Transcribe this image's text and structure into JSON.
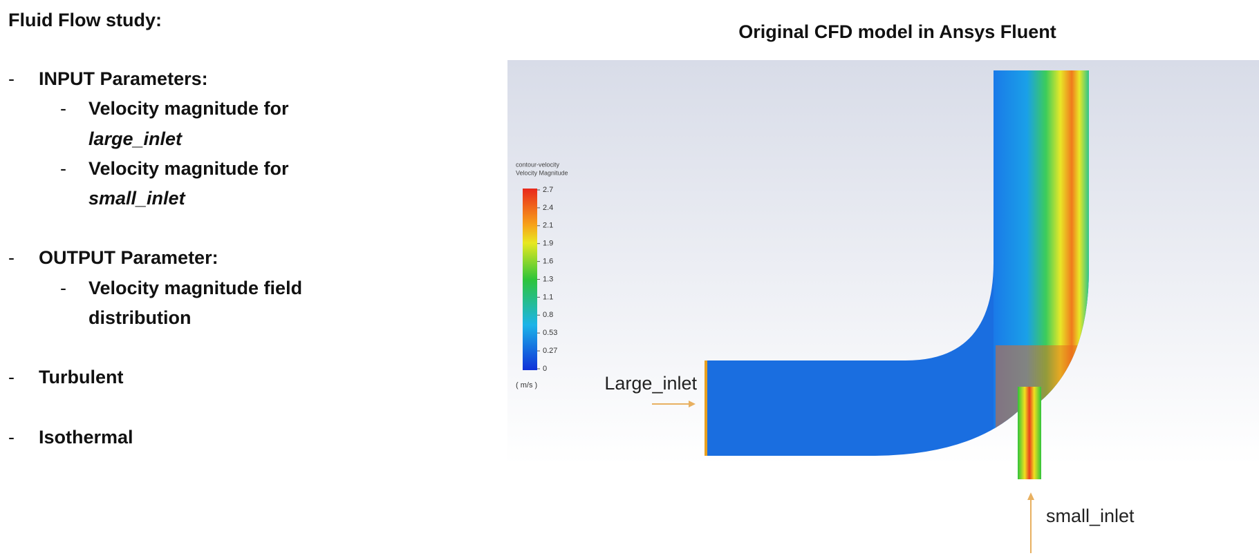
{
  "left_panel": {
    "heading": "Fluid Flow study:",
    "items": [
      {
        "label": "INPUT Parameters:",
        "subitems": [
          {
            "text": "Velocity magnitude for",
            "emphasis": "large_inlet"
          },
          {
            "text": "Velocity magnitude for",
            "emphasis": "small_inlet"
          }
        ]
      },
      {
        "label": "OUTPUT Parameter:",
        "subitems": [
          {
            "text": "Velocity magnitude field",
            "emphasis": "distribution"
          }
        ]
      },
      {
        "label": "Turbulent"
      },
      {
        "label": "Isothermal"
      }
    ]
  },
  "right_panel": {
    "title": "Original CFD model in Ansys Fluent",
    "colorbar": {
      "title_lines": [
        "contour-velocity",
        "Velocity Magnitude"
      ],
      "ticks": [
        "2.7",
        "2.4",
        "2.1",
        "1.9",
        "1.6",
        "1.3",
        "1.1",
        "0.8",
        "0.53",
        "0.27",
        "0"
      ],
      "unit": "( m/s )"
    },
    "annotations": [
      "Large_inlet",
      "small_inlet"
    ]
  }
}
